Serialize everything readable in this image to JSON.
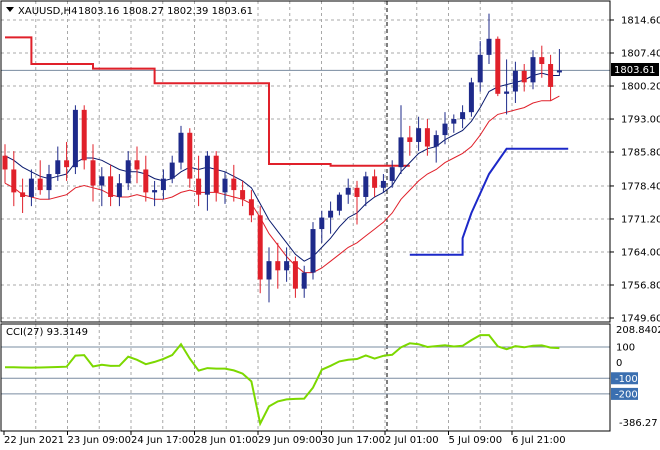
{
  "header": {
    "symbol": "XAUUSD,H4",
    "ohlc": "1803.16 1808.27 1802.39 1803.61"
  },
  "cci": {
    "label": "CCI(27) 93.3149",
    "axis_top": "208.8402",
    "axis_bottom": "-386.27"
  },
  "current_price": "1803.61",
  "colors": {
    "up_candle": "#1e2a8a",
    "down_candle": "#e0202a",
    "ma_fast": "#0a1a6e",
    "ma_slow": "#e0202a",
    "step_red": "#e0202a",
    "step_blue": "#1c28c8",
    "cci_line": "#7cd800",
    "grid": "#a8a8a8",
    "label_bg": "#000000",
    "level_label_bg": "#3b6fb0"
  },
  "chart_data": {
    "type": "candlestick",
    "price_ticks": [
      "1814.60",
      "1807.40",
      "1800.20",
      "1793.00",
      "1785.80",
      "1778.40",
      "1771.20",
      "1764.00",
      "1756.80",
      "1749.60"
    ],
    "price_range": [
      1749.6,
      1814.6
    ],
    "time_labels": [
      "22 Jun 2021",
      "23 Jun 09:00",
      "24 Jun 17:00",
      "28 Jun 01:00",
      "29 Jun 09:00",
      "30 Jun 17:00",
      "2 Jul 01:00",
      "5 Jul 09:00",
      "6 Jul 21:00"
    ],
    "session_separators_after_label_index": [
      6
    ],
    "candles": [
      [
        1785.0,
        1787.5,
        1779.0,
        1782.0
      ],
      [
        1782.0,
        1786.0,
        1774.0,
        1777.0
      ],
      [
        1777.0,
        1780.0,
        1772.5,
        1776.0
      ],
      [
        1776.0,
        1782.0,
        1774.0,
        1780.0
      ],
      [
        1780.0,
        1784.0,
        1776.5,
        1777.5
      ],
      [
        1777.5,
        1783.0,
        1775.5,
        1781.0
      ],
      [
        1781.0,
        1787.0,
        1779.5,
        1784.0
      ],
      [
        1784.0,
        1788.0,
        1779.5,
        1782.5
      ],
      [
        1782.5,
        1796.0,
        1781.0,
        1795.0
      ],
      [
        1795.0,
        1796.0,
        1782.0,
        1784.0
      ],
      [
        1784.0,
        1787.5,
        1775.0,
        1778.5
      ],
      [
        1778.5,
        1782.5,
        1774.0,
        1780.5
      ],
      [
        1780.5,
        1783.0,
        1774.0,
        1776.0
      ],
      [
        1776.0,
        1781.0,
        1774.0,
        1779.0
      ],
      [
        1779.0,
        1786.0,
        1777.5,
        1784.0
      ],
      [
        1784.0,
        1787.0,
        1779.0,
        1782.0
      ],
      [
        1782.0,
        1785.0,
        1775.0,
        1777.0
      ],
      [
        1777.0,
        1779.5,
        1774.0,
        1777.5
      ],
      [
        1777.5,
        1782.0,
        1775.5,
        1780.0
      ],
      [
        1780.0,
        1785.0,
        1779.0,
        1783.5
      ],
      [
        1783.5,
        1791.5,
        1782.0,
        1790.0
      ],
      [
        1790.0,
        1791.0,
        1778.0,
        1780.0
      ],
      [
        1780.0,
        1785.0,
        1774.0,
        1776.5
      ],
      [
        1776.5,
        1786.0,
        1773.0,
        1785.0
      ],
      [
        1785.0,
        1786.0,
        1775.0,
        1777.0
      ],
      [
        1777.0,
        1781.5,
        1774.5,
        1780.0
      ],
      [
        1780.0,
        1783.0,
        1775.0,
        1777.5
      ],
      [
        1777.5,
        1779.5,
        1774.0,
        1775.5
      ],
      [
        1775.5,
        1777.5,
        1770.5,
        1772.0
      ],
      [
        1772.0,
        1774.0,
        1755.0,
        1758.0
      ],
      [
        1758.0,
        1765.0,
        1753.0,
        1762.0
      ],
      [
        1762.0,
        1766.0,
        1756.0,
        1760.0
      ],
      [
        1760.0,
        1765.0,
        1757.5,
        1762.0
      ],
      [
        1762.0,
        1763.0,
        1754.0,
        1756.0
      ],
      [
        1756.0,
        1761.0,
        1754.0,
        1759.5
      ],
      [
        1759.5,
        1770.5,
        1758.0,
        1769.0
      ],
      [
        1769.0,
        1773.0,
        1766.0,
        1771.5
      ],
      [
        1771.5,
        1775.0,
        1768.0,
        1773.0
      ],
      [
        1773.0,
        1777.0,
        1772.0,
        1776.5
      ],
      [
        1776.5,
        1780.0,
        1774.5,
        1778.0
      ],
      [
        1778.0,
        1779.5,
        1770.0,
        1776.0
      ],
      [
        1776.0,
        1781.5,
        1774.0,
        1780.5
      ],
      [
        1780.5,
        1782.0,
        1776.0,
        1778.0
      ],
      [
        1778.0,
        1781.0,
        1777.0,
        1779.5
      ],
      [
        1779.5,
        1784.0,
        1778.0,
        1782.5
      ],
      [
        1782.5,
        1796.0,
        1781.0,
        1789.0
      ],
      [
        1789.0,
        1791.5,
        1785.0,
        1788.0
      ],
      [
        1788.0,
        1793.5,
        1786.0,
        1791.0
      ],
      [
        1791.0,
        1793.0,
        1785.0,
        1787.0
      ],
      [
        1787.0,
        1790.5,
        1783.5,
        1789.5
      ],
      [
        1789.5,
        1794.5,
        1787.5,
        1792.0
      ],
      [
        1792.0,
        1794.0,
        1790.0,
        1793.0
      ],
      [
        1793.0,
        1796.0,
        1791.0,
        1794.5
      ],
      [
        1794.5,
        1802.0,
        1793.5,
        1801.0
      ],
      [
        1801.0,
        1810.0,
        1799.0,
        1807.0
      ],
      [
        1807.0,
        1816.0,
        1805.0,
        1810.5
      ],
      [
        1810.5,
        1811.0,
        1798.0,
        1798.5
      ],
      [
        1798.5,
        1806.0,
        1794.0,
        1799.0
      ],
      [
        1799.0,
        1805.5,
        1796.5,
        1803.5
      ],
      [
        1803.5,
        1805.0,
        1799.0,
        1801.0
      ],
      [
        1801.0,
        1808.0,
        1799.5,
        1806.5
      ],
      [
        1806.5,
        1809.0,
        1802.0,
        1805.0
      ],
      [
        1805.0,
        1807.0,
        1797.0,
        1800.0
      ],
      [
        1803.16,
        1808.27,
        1802.39,
        1803.61
      ]
    ],
    "ma_fast": [
      1785.0,
      1784.0,
      1782.5,
      1781.5,
      1780.5,
      1780.0,
      1780.5,
      1781.0,
      1783.5,
      1784.5,
      1784.5,
      1784.0,
      1783.0,
      1782.0,
      1781.5,
      1781.5,
      1781.0,
      1780.0,
      1779.5,
      1780.0,
      1781.5,
      1782.5,
      1782.0,
      1782.5,
      1782.0,
      1781.5,
      1780.5,
      1779.5,
      1778.0,
      1774.5,
      1771.0,
      1768.5,
      1766.0,
      1763.5,
      1762.0,
      1763.0,
      1765.0,
      1767.0,
      1769.5,
      1771.5,
      1772.5,
      1774.5,
      1776.0,
      1777.0,
      1778.5,
      1781.5,
      1783.5,
      1785.5,
      1786.5,
      1787.0,
      1788.5,
      1789.5,
      1790.5,
      1792.5,
      1795.5,
      1799.0,
      1800.0,
      1800.5,
      1801.0,
      1801.5,
      1802.5,
      1803.0,
      1802.5,
      1802.5
    ],
    "ma_slow": [
      1779.0,
      1778.0,
      1776.5,
      1776.0,
      1775.5,
      1775.5,
      1776.0,
      1776.5,
      1778.0,
      1778.5,
      1778.0,
      1777.5,
      1776.5,
      1776.0,
      1776.0,
      1776.5,
      1776.0,
      1775.5,
      1775.5,
      1776.0,
      1777.0,
      1777.5,
      1777.0,
      1777.0,
      1777.0,
      1776.5,
      1776.0,
      1775.5,
      1774.5,
      1771.5,
      1768.0,
      1765.5,
      1763.0,
      1761.0,
      1759.5,
      1759.5,
      1760.5,
      1762.0,
      1763.5,
      1765.0,
      1766.0,
      1767.5,
      1769.0,
      1770.5,
      1772.5,
      1775.5,
      1777.5,
      1779.5,
      1781.0,
      1782.0,
      1783.5,
      1784.5,
      1785.5,
      1787.0,
      1789.5,
      1792.5,
      1794.0,
      1794.5,
      1795.0,
      1795.5,
      1796.5,
      1797.0,
      1797.0,
      1798.0
    ],
    "step_red": [
      [
        0,
        1810.8
      ],
      [
        3,
        1810.8
      ],
      [
        3,
        1805.0
      ],
      [
        10,
        1805.0
      ],
      [
        10,
        1804.0
      ],
      [
        17,
        1804.0
      ],
      [
        17,
        1800.8
      ],
      [
        30,
        1800.8
      ],
      [
        30,
        1783.2
      ],
      [
        37,
        1783.2
      ],
      [
        37,
        1782.8
      ],
      [
        46,
        1782.8
      ]
    ],
    "step_blue": [
      [
        46,
        1763.4
      ],
      [
        52,
        1763.4
      ],
      [
        52,
        1767.0
      ],
      [
        53,
        1772.5
      ],
      [
        55,
        1781.0
      ],
      [
        57,
        1786.5
      ],
      [
        64,
        1786.5
      ]
    ],
    "cci_range": [
      -386.27,
      208.84
    ],
    "cci_levels": [
      100,
      -100,
      -200
    ],
    "cci": [
      -30,
      -30,
      -31,
      -32,
      -31,
      -30,
      -28,
      -26,
      45,
      48,
      -25,
      -14,
      -21,
      -20,
      38,
      18,
      -10,
      5,
      24,
      48,
      118,
      26,
      -51,
      -35,
      -38,
      -38,
      -50,
      -70,
      -120,
      -390,
      -280,
      -248,
      -235,
      -232,
      -230,
      -160,
      -45,
      -20,
      8,
      18,
      23,
      46,
      26,
      44,
      50,
      98,
      124,
      118,
      100,
      106,
      111,
      103,
      108,
      144,
      176,
      176,
      104,
      86,
      105,
      98,
      108,
      110,
      96,
      93
    ]
  }
}
